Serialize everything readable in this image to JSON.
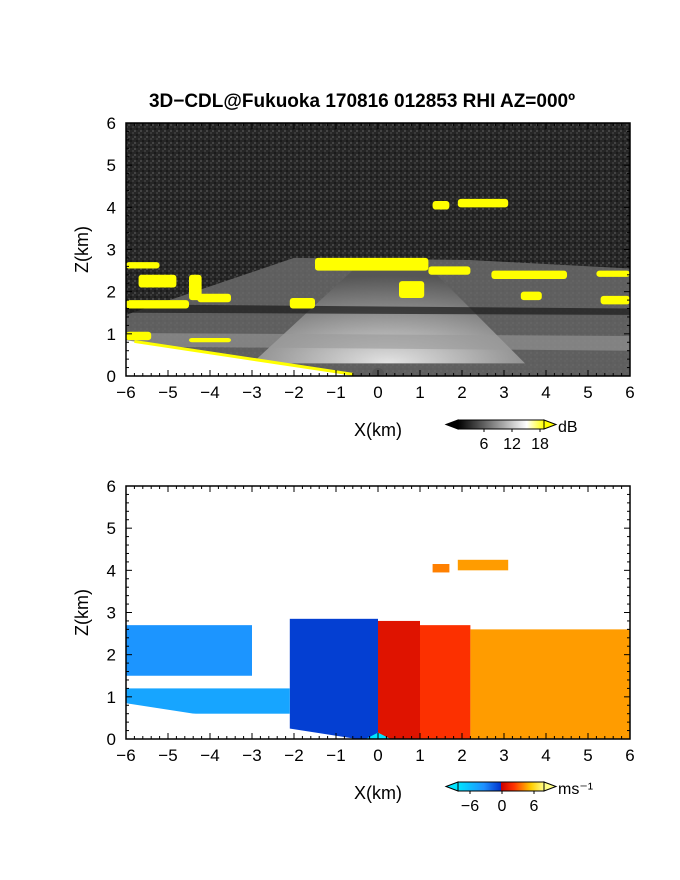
{
  "title": "3D−CDL@Fukuoka 170816 012853 RHI AZ=000º",
  "chart_data": [
    {
      "type": "heatmap",
      "variable": "reflectivity",
      "xlabel": "X(km)",
      "ylabel": "Z(km)",
      "xlim": [
        -6,
        6
      ],
      "ylim": [
        0,
        6
      ],
      "xticks": [
        "−6",
        "−5",
        "−4",
        "−3",
        "−2",
        "−1",
        "0",
        "1",
        "2",
        "3",
        "4",
        "5",
        "6"
      ],
      "yticks": [
        "0",
        "1",
        "2",
        "3",
        "4",
        "5",
        "6"
      ],
      "colorbar": {
        "unit": "dB",
        "ticks": [
          "6",
          "12",
          "18"
        ],
        "min": 0,
        "max": 20,
        "colors": [
          "#000000",
          "#ffffff",
          "#ffff00"
        ]
      },
      "background": "#2a2a2a",
      "high_echo_color": "#ffff00",
      "high_echo_regions_km": [
        {
          "x": [
            1.3,
            1.7
          ],
          "z": [
            3.95,
            4.15
          ]
        },
        {
          "x": [
            1.9,
            3.1
          ],
          "z": [
            4.0,
            4.2
          ]
        },
        {
          "x": [
            -1.5,
            1.2
          ],
          "z": [
            2.5,
            2.8
          ]
        },
        {
          "x": [
            1.2,
            2.2
          ],
          "z": [
            2.4,
            2.6
          ]
        },
        {
          "x": [
            2.7,
            4.5
          ],
          "z": [
            2.3,
            2.5
          ]
        },
        {
          "x": [
            5.2,
            6.0
          ],
          "z": [
            2.35,
            2.5
          ]
        },
        {
          "x": [
            -6.0,
            -5.2
          ],
          "z": [
            2.55,
            2.7
          ]
        },
        {
          "x": [
            -5.7,
            -4.8
          ],
          "z": [
            2.1,
            2.4
          ]
        },
        {
          "x": [
            -4.5,
            -4.2
          ],
          "z": [
            1.8,
            2.4
          ]
        },
        {
          "x": [
            -6.0,
            -4.5
          ],
          "z": [
            1.6,
            1.8
          ]
        },
        {
          "x": [
            -4.3,
            -3.5
          ],
          "z": [
            1.75,
            1.95
          ]
        },
        {
          "x": [
            -2.1,
            -1.5
          ],
          "z": [
            1.6,
            1.85
          ]
        },
        {
          "x": [
            0.5,
            1.1
          ],
          "z": [
            1.85,
            2.25
          ]
        },
        {
          "x": [
            3.4,
            3.9
          ],
          "z": [
            1.8,
            2.0
          ]
        },
        {
          "x": [
            5.3,
            6.0
          ],
          "z": [
            1.7,
            1.9
          ]
        },
        {
          "x": [
            -6.0,
            -5.4
          ],
          "z": [
            0.85,
            1.05
          ]
        },
        {
          "x": [
            -4.5,
            -3.5
          ],
          "z": [
            0.8,
            0.9
          ]
        }
      ]
    },
    {
      "type": "heatmap",
      "variable": "doppler_velocity",
      "xlabel": "X(km)",
      "ylabel": "Z(km)",
      "xlim": [
        -6,
        6
      ],
      "ylim": [
        0,
        6
      ],
      "xticks": [
        "−6",
        "−5",
        "−4",
        "−3",
        "−2",
        "−1",
        "0",
        "1",
        "2",
        "3",
        "4",
        "5",
        "6"
      ],
      "yticks": [
        "0",
        "1",
        "2",
        "3",
        "4",
        "5",
        "6"
      ],
      "colorbar": {
        "unit": "ms⁻¹",
        "ticks": [
          "−6",
          "0",
          "6"
        ],
        "min": -8,
        "max": 8,
        "colors": [
          "#00e5ff",
          "#1e90ff",
          "#0033cc",
          "#cc0000",
          "#ff3300",
          "#ffcc00",
          "#ffff88"
        ]
      },
      "regions_km": [
        {
          "x": [
            1.3,
            1.7
          ],
          "z": [
            3.95,
            4.15
          ],
          "v": 4
        },
        {
          "x": [
            1.9,
            3.1
          ],
          "z": [
            4.0,
            4.25
          ],
          "v": 4.5
        },
        {
          "x": [
            -2.1,
            0.0
          ],
          "z": [
            0.0,
            2.85
          ],
          "v": -3
        },
        {
          "x": [
            0.0,
            1.0
          ],
          "z": [
            0.0,
            2.8
          ],
          "v": 1
        },
        {
          "x": [
            1.0,
            2.2
          ],
          "z": [
            0.0,
            2.7
          ],
          "v": 2.5
        },
        {
          "x": [
            2.2,
            6.0
          ],
          "z": [
            0.0,
            2.6
          ],
          "v": 4.5
        },
        {
          "x": [
            -6.0,
            -3.0
          ],
          "z": [
            1.5,
            2.7
          ],
          "v": -5.5
        },
        {
          "x": [
            -6.0,
            -2.1
          ],
          "z": [
            0.6,
            1.2
          ],
          "v": -6
        }
      ]
    }
  ]
}
